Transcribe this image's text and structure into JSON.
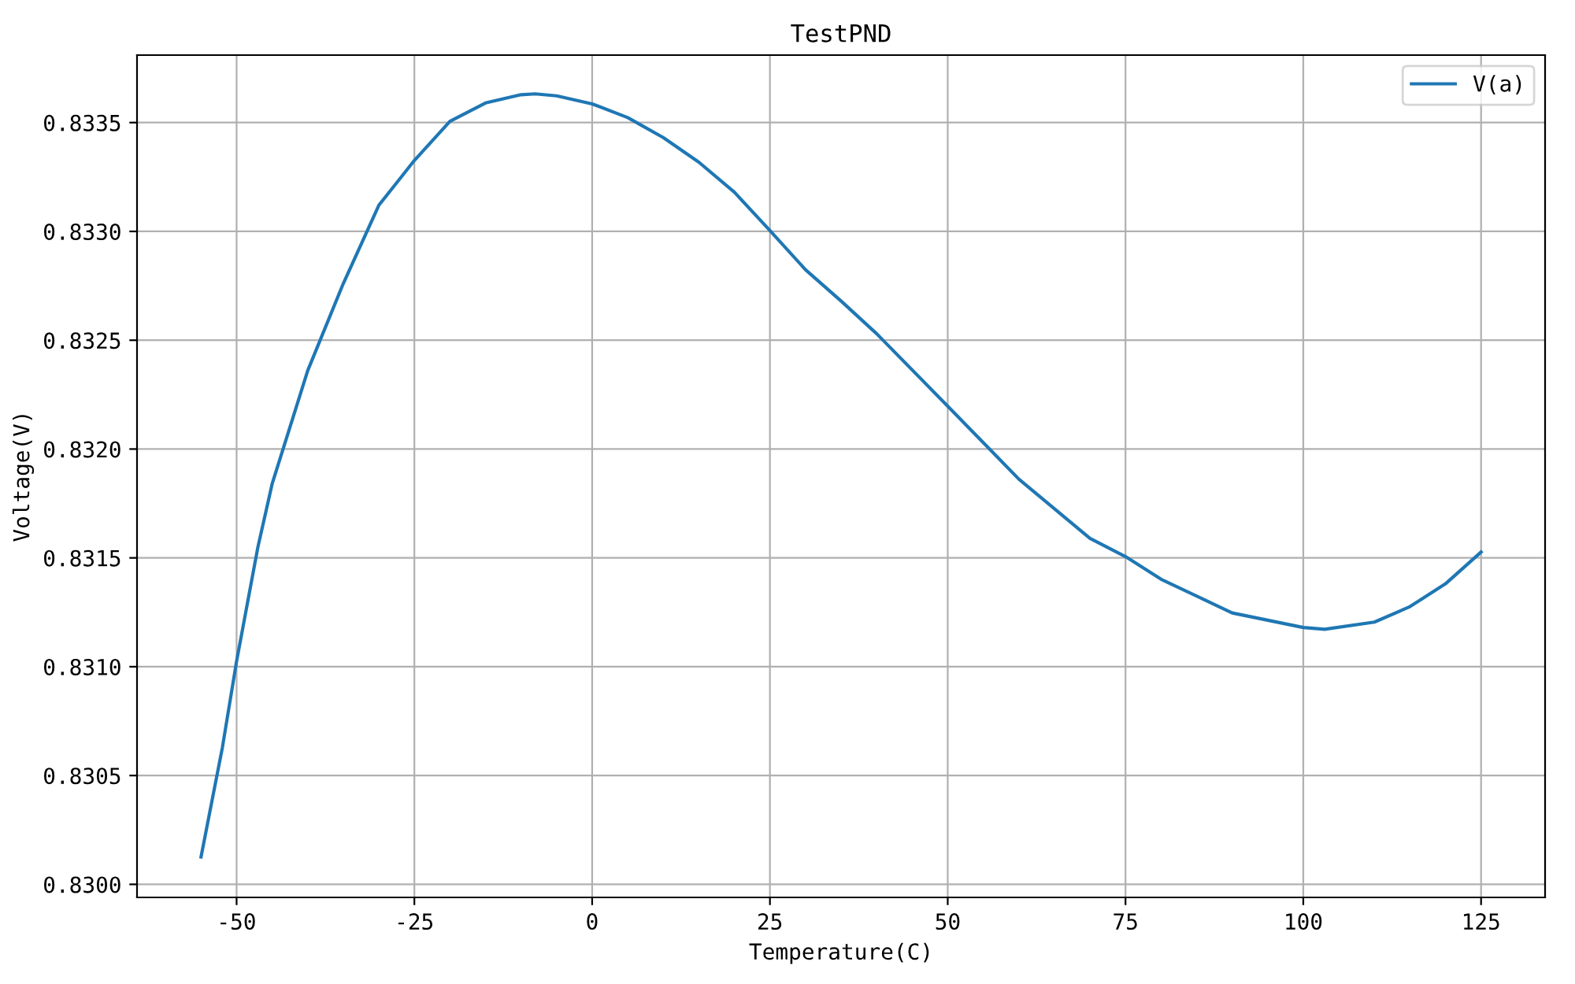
{
  "chart_data": {
    "type": "line",
    "title": "TestPND",
    "xlabel": "Temperature(C)",
    "ylabel": "Voltage(V)",
    "x": [
      -55,
      -52,
      -50,
      -47,
      -45,
      -40,
      -35,
      -30,
      -25,
      -20,
      -15,
      -10,
      -8,
      -5,
      0,
      5,
      10,
      15,
      20,
      25,
      30,
      35,
      40,
      50,
      60,
      70,
      75,
      80,
      90,
      100,
      103,
      110,
      115,
      120,
      125
    ],
    "series": [
      {
        "name": "V(a)",
        "color": "#1f77b4",
        "values": [
          0.830126,
          0.830628,
          0.831025,
          0.83155,
          0.83184,
          0.83236,
          0.83276,
          0.83312,
          0.833326,
          0.833506,
          0.83359,
          0.833628,
          0.833632,
          0.833623,
          0.833586,
          0.833523,
          0.833431,
          0.833318,
          0.83318,
          0.833004,
          0.832824,
          0.83268,
          0.83253,
          0.832197,
          0.831862,
          0.83159,
          0.831506,
          0.831402,
          0.831247,
          0.83118,
          0.831172,
          0.831205,
          0.831276,
          0.831381,
          0.831527
        ]
      }
    ],
    "xlim": [
      -64,
      134
    ],
    "ylim": [
      0.82994,
      0.83381
    ],
    "xticks": [
      -50,
      -25,
      0,
      25,
      50,
      75,
      100,
      125
    ],
    "yticks": [
      {
        "value": 0.83,
        "label": "0.8300"
      },
      {
        "value": 0.8305,
        "label": "0.8305"
      },
      {
        "value": 0.831,
        "label": "0.8310"
      },
      {
        "value": 0.8315,
        "label": "0.8315"
      },
      {
        "value": 0.832,
        "label": "0.8320"
      },
      {
        "value": 0.8325,
        "label": "0.8325"
      },
      {
        "value": 0.833,
        "label": "0.8330"
      },
      {
        "value": 0.8335,
        "label": "0.8335"
      }
    ],
    "grid": true,
    "legend": "top right"
  }
}
